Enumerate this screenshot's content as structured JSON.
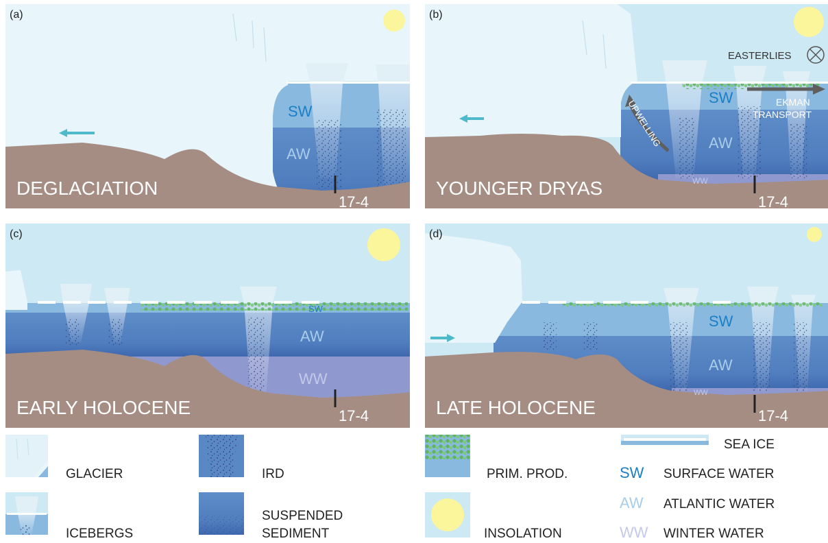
{
  "panels": [
    {
      "letter": "(a)",
      "title": "DEGLACIATION",
      "core": "17-4"
    },
    {
      "letter": "(b)",
      "title": "YOUNGER DRYAS",
      "core": "17-4"
    },
    {
      "letter": "(c)",
      "title": "EARLY HOLOCENE",
      "core": "17-4"
    },
    {
      "letter": "(d)",
      "title": "LATE HOLOCENE",
      "core": "17-4"
    }
  ],
  "water": {
    "sw": "SW",
    "aw": "AW",
    "ww": "WW"
  },
  "annotations": {
    "easterlies": "EASTERLIES",
    "ekman_line1": "EKMAN",
    "ekman_line2": "TRANSPORT",
    "upwelling": "UPWELLING"
  },
  "legend": {
    "glacier": "GLACIER",
    "icebergs": "ICEBERGS",
    "ird": "IRD",
    "suspended_line1": "SUSPENDED",
    "suspended_line2": "SEDIMENT",
    "prim_prod": "PRIM. PROD.",
    "insolation": "INSOLATION",
    "sea_ice": "SEA ICE",
    "sw_code": "SW",
    "sw_label": "SURFACE WATER",
    "aw_code": "AW",
    "aw_label": "ATLANTIC WATER",
    "ww_code": "WW",
    "ww_label": "WINTER WATER"
  },
  "colors": {
    "sky": "#cde9f3",
    "glacier": "#e8f5fa",
    "surface_water": "#8ab9df",
    "atlantic_water": "#5a88c4",
    "winter_water": "#8f99cf",
    "seabed": "#a58d84",
    "sun": "#fbf59c",
    "prim_prod": "#6dbf6f",
    "sw_text": "#1a7fc4",
    "arrow": "#4fb9cc",
    "wind_arrow": "#5f5f5f"
  }
}
